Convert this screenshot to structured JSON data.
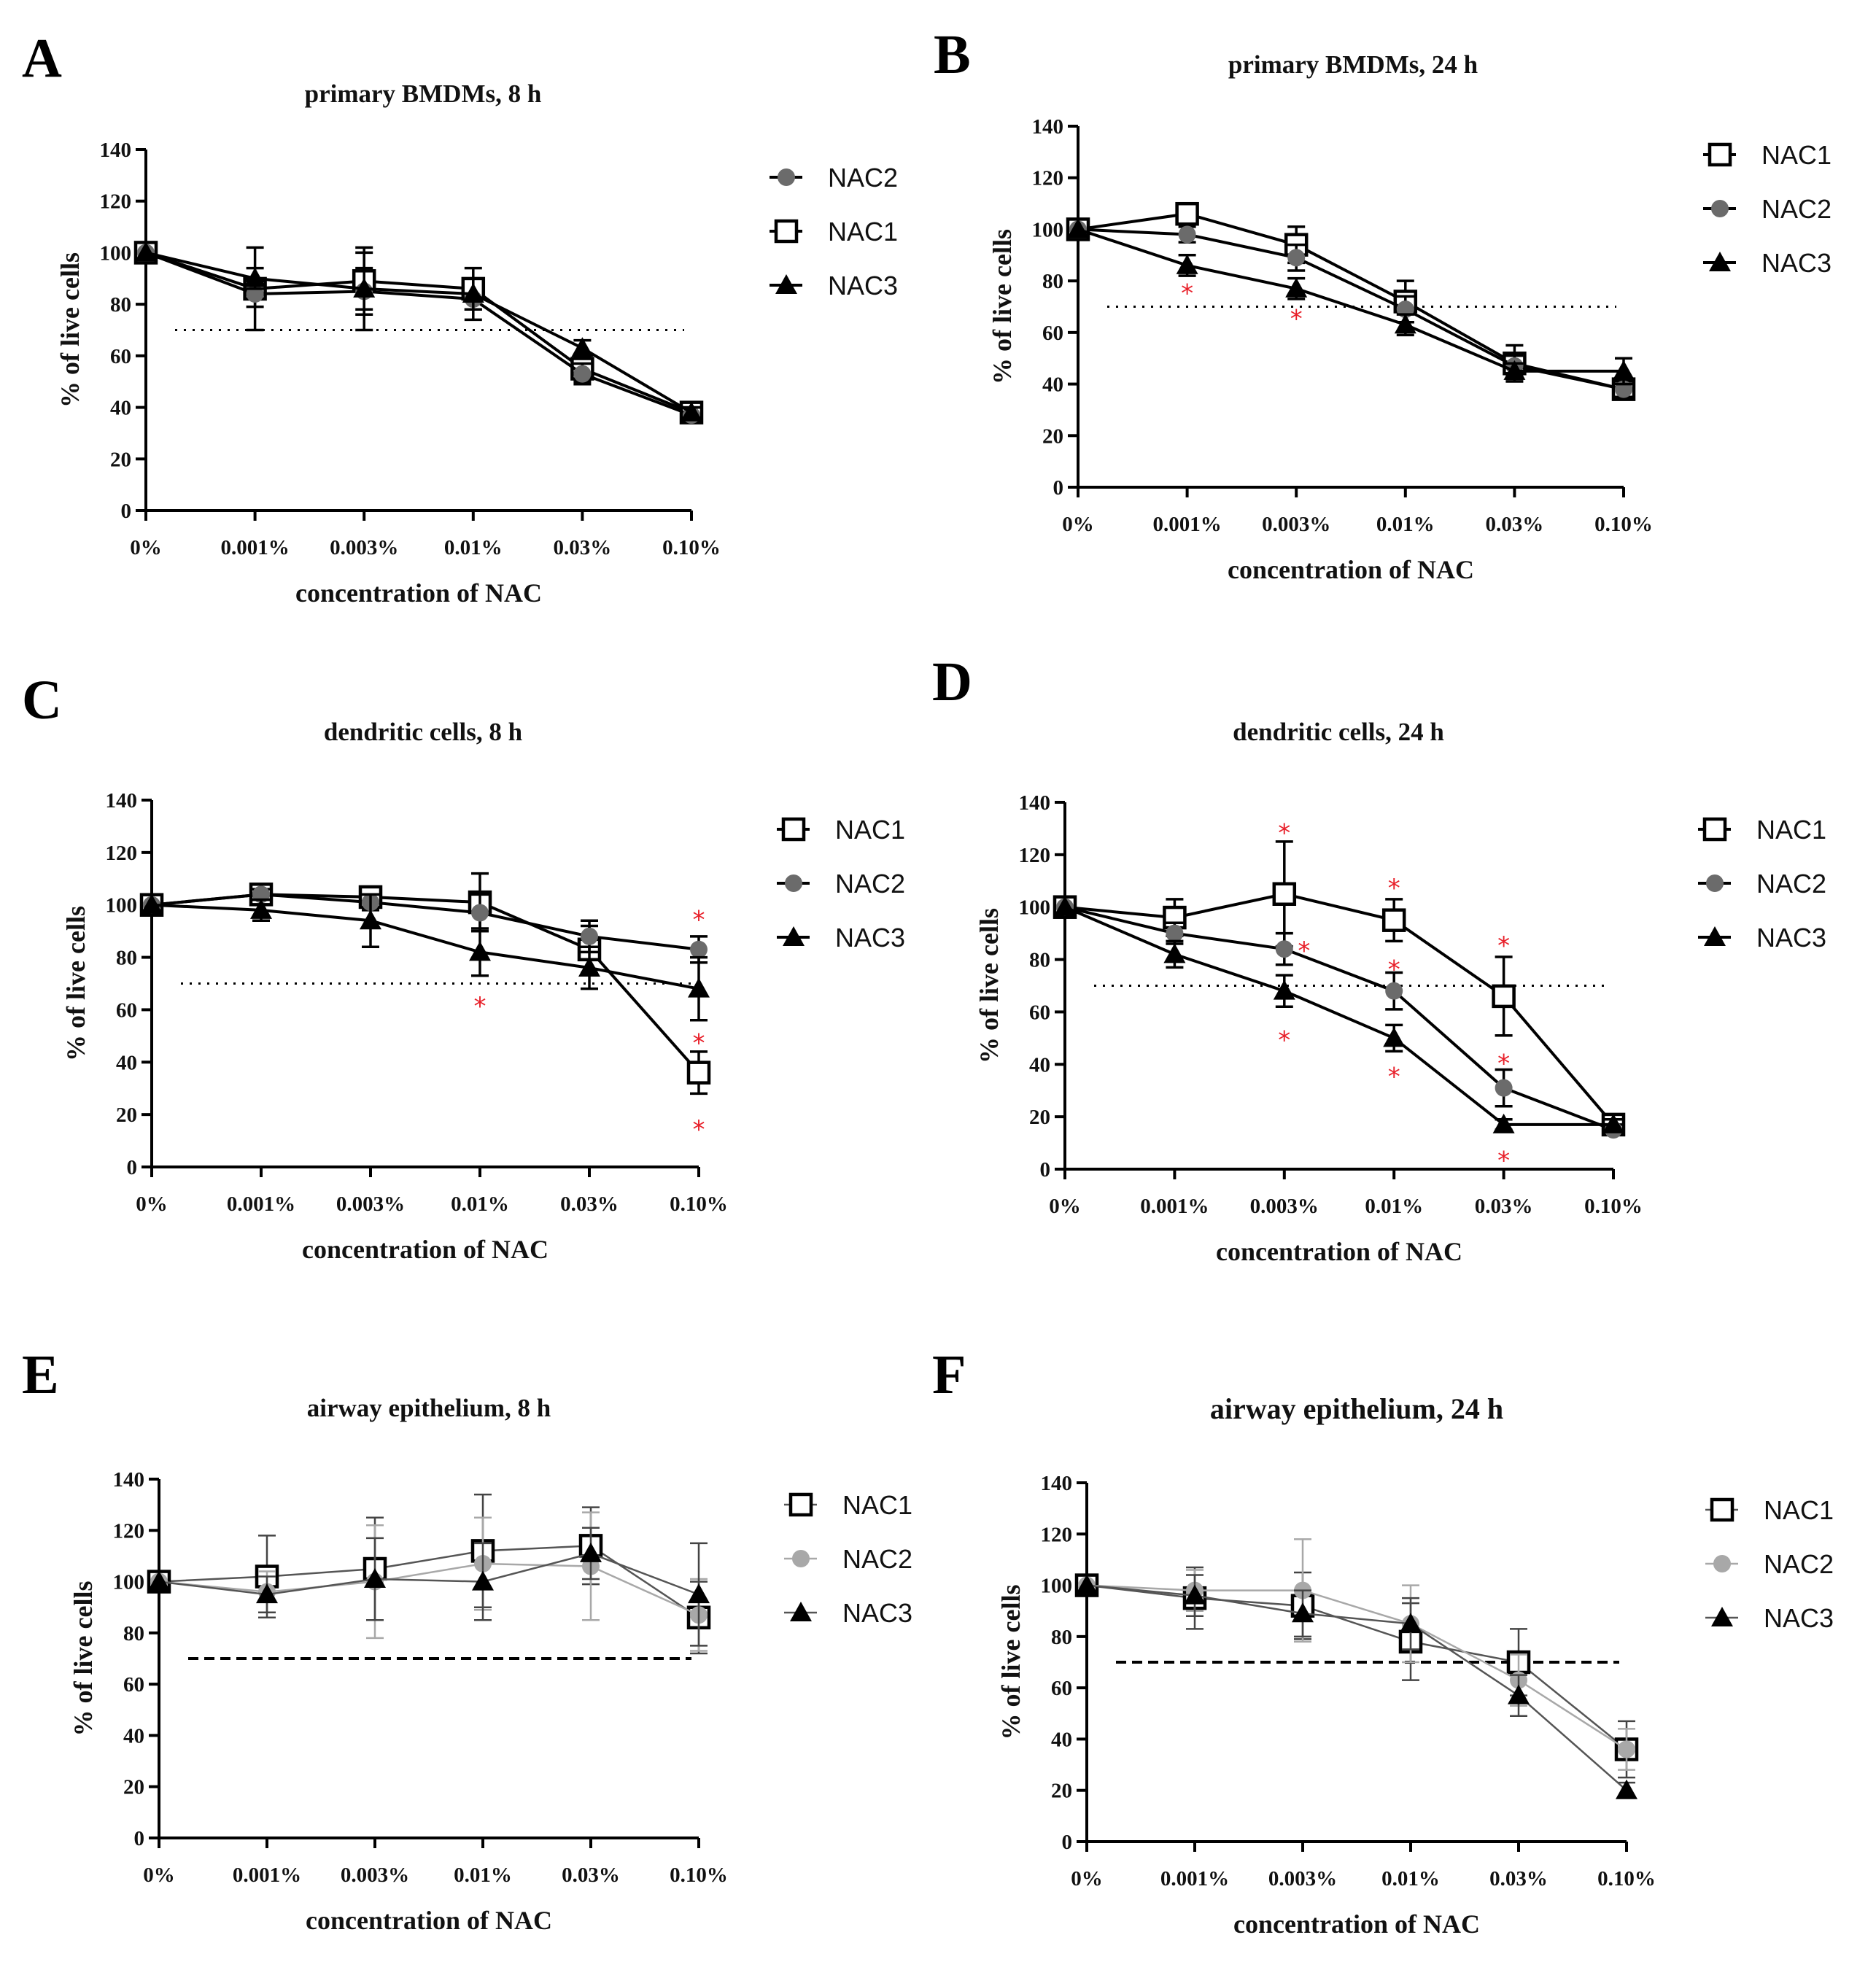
{
  "figure": {
    "colors": {
      "nac1": "#000000",
      "nac2": "#6b6b6b",
      "nac3": "#000000",
      "nac2_light": "#a8a8a8",
      "star": "#e8202a"
    },
    "panels": [
      {
        "letter": "A",
        "title": "primary BMDMs, 8 h",
        "legend_order": [
          "NAC2",
          "NAC1",
          "NAC3"
        ],
        "stars": []
      },
      {
        "letter": "B",
        "title": "primary BMDMs, 24 h",
        "legend_order": [
          "NAC1",
          "NAC2",
          "NAC3"
        ],
        "stars": [
          {
            "x": 1,
            "y": 76,
            "label": "*"
          },
          {
            "x": 2,
            "y": 66,
            "label": "*"
          }
        ]
      },
      {
        "letter": "C",
        "title": "dendritic cells, 8 h",
        "legend_order": [
          "NAC1",
          "NAC2",
          "NAC3"
        ],
        "stars": [
          {
            "x": 3,
            "y": 62,
            "label": "*"
          },
          {
            "x": 5,
            "y": 95,
            "label": "*"
          },
          {
            "x": 5,
            "y": 48,
            "label": "*"
          },
          {
            "x": 5,
            "y": 15,
            "label": "*"
          }
        ]
      },
      {
        "letter": "D",
        "title": "dendritic cells, 24 h",
        "legend_order": [
          "NAC1",
          "NAC2",
          "NAC3"
        ],
        "stars": [
          {
            "x": 2,
            "y": 129,
            "label": "*"
          },
          {
            "x": 2.18,
            "y": 84,
            "label": "*"
          },
          {
            "x": 2,
            "y": 50,
            "label": "*"
          },
          {
            "x": 3,
            "y": 108,
            "label": "*"
          },
          {
            "x": 3,
            "y": 77,
            "label": "*"
          },
          {
            "x": 3,
            "y": 36,
            "label": "*"
          },
          {
            "x": 4,
            "y": 86,
            "label": "*"
          },
          {
            "x": 4,
            "y": 41,
            "label": "*"
          },
          {
            "x": 4,
            "y": 4,
            "label": "*"
          }
        ]
      },
      {
        "letter": "E",
        "title": "airway epithelium, 8 h",
        "legend_order": [
          "NAC1",
          "NAC2",
          "NAC3"
        ],
        "stars": []
      },
      {
        "letter": "F",
        "title": "airway epithelium, 24 h",
        "legend_order": [
          "NAC1",
          "NAC2",
          "NAC3"
        ],
        "stars": []
      }
    ]
  },
  "chart_data": [
    {
      "type": "line",
      "title": "primary BMDMs, 8 h",
      "xlabel": "concentration of NAC",
      "ylabel": "% of live cells",
      "categories": [
        "0%",
        "0.001%",
        "0.003%",
        "0.01%",
        "0.03%",
        "0.10%"
      ],
      "ylim": [
        0,
        140
      ],
      "yticks": [
        0,
        20,
        40,
        60,
        80,
        100,
        120,
        140
      ],
      "reference_line": 70,
      "series": [
        {
          "name": "NAC1",
          "values": [
            100,
            86,
            89,
            86,
            55,
            38
          ],
          "errors": [
            0,
            16,
            11,
            8,
            5,
            2
          ]
        },
        {
          "name": "NAC2",
          "values": [
            100,
            84,
            85,
            82,
            53,
            37
          ],
          "errors": [
            0,
            5,
            9,
            8,
            4,
            3
          ]
        },
        {
          "name": "NAC3",
          "values": [
            100,
            90,
            86,
            84,
            63,
            38
          ],
          "errors": [
            0,
            4,
            16,
            6,
            3,
            2
          ]
        }
      ]
    },
    {
      "type": "line",
      "title": "primary BMDMs, 24 h",
      "xlabel": "concentration of NAC",
      "ylabel": "% of live cells",
      "categories": [
        "0%",
        "0.001%",
        "0.003%",
        "0.01%",
        "0.03%",
        "0.10%"
      ],
      "ylim": [
        0,
        140
      ],
      "yticks": [
        0,
        20,
        40,
        60,
        80,
        100,
        120,
        140
      ],
      "reference_line": 70,
      "series": [
        {
          "name": "NAC1",
          "values": [
            100,
            106,
            94,
            72,
            48,
            38
          ],
          "errors": [
            0,
            3,
            7,
            8,
            7,
            3
          ]
        },
        {
          "name": "NAC2",
          "values": [
            100,
            98,
            89,
            69,
            47,
            38
          ],
          "errors": [
            0,
            3,
            5,
            5,
            4,
            3
          ]
        },
        {
          "name": "NAC3",
          "values": [
            100,
            86,
            77,
            63,
            45,
            45
          ],
          "errors": [
            0,
            4,
            4,
            4,
            3,
            5
          ]
        }
      ]
    },
    {
      "type": "line",
      "title": "dendritic cells, 8 h",
      "xlabel": "concentration of NAC",
      "ylabel": "% of live cells",
      "categories": [
        "0%",
        "0.001%",
        "0.003%",
        "0.01%",
        "0.03%",
        "0.10%"
      ],
      "ylim": [
        0,
        140
      ],
      "yticks": [
        0,
        20,
        40,
        60,
        80,
        100,
        120,
        140
      ],
      "reference_line": 70,
      "series": [
        {
          "name": "NAC1",
          "values": [
            100,
            104,
            103,
            101,
            83,
            36
          ],
          "errors": [
            0,
            2,
            3,
            11,
            9,
            8
          ]
        },
        {
          "name": "NAC2",
          "values": [
            100,
            104,
            101,
            97,
            88,
            83
          ],
          "errors": [
            0,
            2,
            3,
            7,
            6,
            5
          ]
        },
        {
          "name": "NAC3",
          "values": [
            100,
            98,
            94,
            82,
            76,
            68
          ],
          "errors": [
            0,
            4,
            10,
            9,
            8,
            12
          ]
        }
      ]
    },
    {
      "type": "line",
      "title": "dendritic cells, 24 h",
      "xlabel": "concentration of NAC",
      "ylabel": "% of live cells",
      "categories": [
        "0%",
        "0.001%",
        "0.003%",
        "0.01%",
        "0.03%",
        "0.10%"
      ],
      "ylim": [
        0,
        140
      ],
      "yticks": [
        0,
        20,
        40,
        60,
        80,
        100,
        120,
        140
      ],
      "reference_line": 70,
      "series": [
        {
          "name": "NAC1",
          "values": [
            100,
            96,
            105,
            95,
            66,
            17
          ],
          "errors": [
            0,
            7,
            20,
            8,
            15,
            2
          ]
        },
        {
          "name": "NAC2",
          "values": [
            100,
            90,
            84,
            68,
            31,
            15
          ],
          "errors": [
            0,
            4,
            6,
            7,
            7,
            2
          ]
        },
        {
          "name": "NAC3",
          "values": [
            100,
            82,
            68,
            50,
            17,
            17
          ],
          "errors": [
            0,
            5,
            6,
            5,
            2,
            2
          ]
        }
      ]
    },
    {
      "type": "line",
      "title": "airway epithelium, 8 h",
      "xlabel": "concentration of NAC",
      "ylabel": "% of live cells",
      "categories": [
        "0%",
        "0.001%",
        "0.003%",
        "0.01%",
        "0.03%",
        "0.10%"
      ],
      "ylim": [
        0,
        140
      ],
      "yticks": [
        0,
        20,
        40,
        60,
        80,
        100,
        120,
        140
      ],
      "reference_line": 70,
      "series": [
        {
          "name": "NAC1",
          "values": [
            100,
            102,
            105,
            112,
            114,
            86
          ],
          "errors": [
            0,
            16,
            20,
            22,
            15,
            14
          ]
        },
        {
          "name": "NAC2",
          "values": [
            100,
            96,
            100,
            107,
            106,
            87
          ],
          "errors": [
            0,
            8,
            22,
            18,
            21,
            14
          ]
        },
        {
          "name": "NAC3",
          "values": [
            100,
            95,
            101,
            100,
            111,
            95
          ],
          "errors": [
            0,
            7,
            16,
            15,
            10,
            20
          ]
        }
      ]
    },
    {
      "type": "line",
      "title": "airway epithelium, 24 h",
      "xlabel": "concentration of NAC",
      "ylabel": "% of live cells",
      "categories": [
        "0%",
        "0.001%",
        "0.003%",
        "0.01%",
        "0.03%",
        "0.10%"
      ],
      "ylim": [
        0,
        140
      ],
      "yticks": [
        0,
        20,
        40,
        60,
        80,
        100,
        120,
        140
      ],
      "reference_line": 70,
      "series": [
        {
          "name": "NAC1",
          "values": [
            100,
            95,
            92,
            78,
            70,
            36
          ],
          "errors": [
            0,
            12,
            13,
            15,
            13,
            11
          ]
        },
        {
          "name": "NAC2",
          "values": [
            100,
            98,
            98,
            85,
            63,
            36
          ],
          "errors": [
            0,
            8,
            20,
            15,
            10,
            8
          ]
        },
        {
          "name": "NAC3",
          "values": [
            100,
            96,
            89,
            85,
            57,
            20
          ],
          "errors": [
            0,
            8,
            9,
            10,
            8,
            3
          ]
        }
      ]
    }
  ]
}
